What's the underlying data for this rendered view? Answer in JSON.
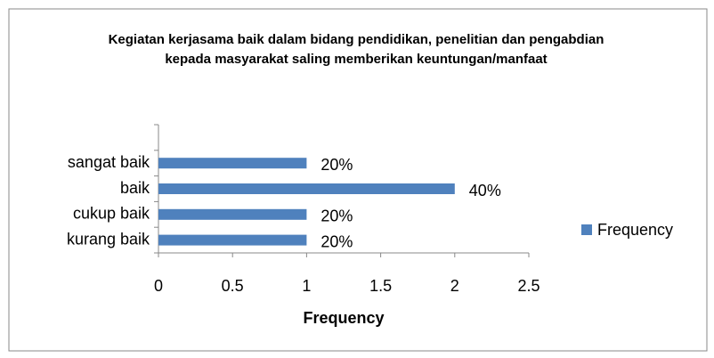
{
  "chart_data": {
    "type": "bar",
    "orientation": "horizontal",
    "title": "Kegiatan kerjasama baik dalam bidang pendidikan, penelitian dan pengabdian kepada masyarakat saling memberikan keuntungan/manfaat",
    "x_label": "Frequency",
    "categories": [
      null,
      "sangat baik",
      "baik",
      "cukup baik",
      "kurang baik"
    ],
    "series": [
      {
        "name": "Frequency",
        "color": "#4f81bd",
        "values": [
          null,
          1,
          2,
          1,
          1
        ],
        "value_labels": [
          null,
          "20%",
          "40%",
          "20%",
          "20%"
        ]
      }
    ],
    "xlim": [
      0,
      2.5
    ],
    "xticks": [
      0,
      0.5,
      1,
      1.5,
      2,
      2.5
    ],
    "grid": false,
    "legend": "right"
  }
}
